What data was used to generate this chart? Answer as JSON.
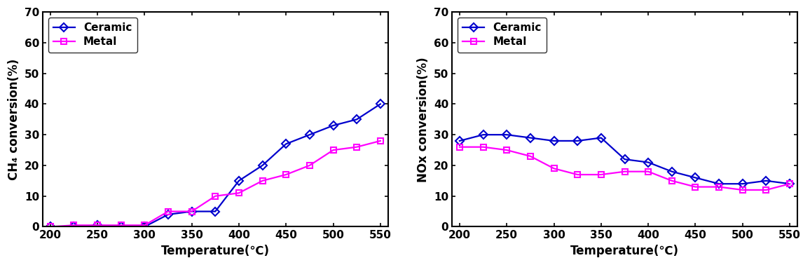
{
  "ch4_temp": [
    200,
    225,
    250,
    275,
    300,
    325,
    350,
    375,
    400,
    425,
    450,
    475,
    500,
    525,
    550
  ],
  "ch4_ceramic": [
    0,
    0,
    0.5,
    0,
    0,
    4,
    5,
    5,
    15,
    20,
    27,
    30,
    33,
    35,
    40
  ],
  "ch4_metal": [
    0,
    0.5,
    0.5,
    0.5,
    0.5,
    5,
    5,
    10,
    11,
    15,
    17,
    20,
    25,
    26,
    28
  ],
  "nox_temp": [
    200,
    225,
    250,
    275,
    300,
    325,
    350,
    375,
    400,
    425,
    450,
    475,
    500,
    525,
    550
  ],
  "nox_ceramic": [
    28,
    30,
    30,
    29,
    28,
    28,
    29,
    22,
    21,
    18,
    16,
    14,
    14,
    15,
    14
  ],
  "nox_metal": [
    26,
    26,
    25,
    23,
    19,
    17,
    17,
    18,
    18,
    15,
    13,
    13,
    12,
    12,
    14
  ],
  "ceramic_color": "#0000CD",
  "metal_color": "#FF00FF",
  "linewidth": 1.6,
  "marker_ceramic": "D",
  "marker_metal": "s",
  "markersize": 6,
  "ch4_ylabel": "CH₄ conversion(%)",
  "nox_ylabel": "NOx conversion(%)",
  "xlabel": "Temperature(℃)",
  "ylim": [
    0,
    70
  ],
  "yticks": [
    0,
    10,
    20,
    30,
    40,
    50,
    60,
    70
  ],
  "xlim": [
    192,
    558
  ],
  "xticks": [
    200,
    250,
    300,
    350,
    400,
    450,
    500,
    550
  ],
  "legend_ceramic": "Ceramic",
  "legend_metal": "Metal",
  "bg_color": "#ffffff",
  "axis_color": "#000000",
  "tick_fontsize": 11,
  "label_fontsize": 12,
  "legend_fontsize": 11
}
